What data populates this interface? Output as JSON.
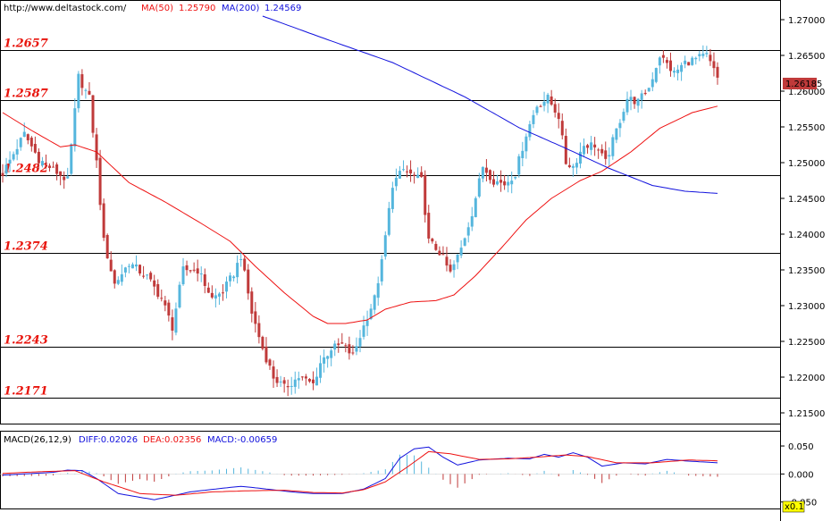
{
  "header": {
    "url": "http://www.deltastock.com/",
    "ma50_label": "MA(50)",
    "ma50_value": "1.25790",
    "ma200_label": "MA(200)",
    "ma200_value": "1.24569"
  },
  "macd_header": {
    "label": "MACD(26,12,9)",
    "diff": "DIFF:0.02026",
    "dea": "DEA:0.02356",
    "macd": "MACD:-0.00659"
  },
  "current_price_tag": "1.26185",
  "scale_tag": "x0.1",
  "colors": {
    "ma50": "#ee1111",
    "ma200": "#1111dd",
    "bull_candle": "#55b6dd",
    "bear_candle": "#c03a3a",
    "level_text": "#e8140c",
    "hist_pos": "#55b6dd",
    "hist_neg": "#c03a3a",
    "diff_line": "#1111dd",
    "dea_line": "#ee1111"
  },
  "chart_data": [
    {
      "type": "candlestick",
      "ylim": [
        1.2135,
        1.2725
      ],
      "yticks": [
        "1.27000",
        "1.26500",
        "1.26000",
        "1.25500",
        "1.25000",
        "1.24500",
        "1.24000",
        "1.23500",
        "1.23000",
        "1.22500",
        "1.22000",
        "1.21500"
      ],
      "levels": [
        {
          "label": "1.2657",
          "value": 1.2657
        },
        {
          "label": "1.2587",
          "value": 1.2587
        },
        {
          "label": "1.2482",
          "value": 1.2482
        },
        {
          "label": "1.2374",
          "value": 1.2374
        },
        {
          "label": "1.2243",
          "value": 1.2243
        },
        {
          "label": "1.2171",
          "value": 1.2171
        }
      ],
      "anchors": [
        [
          0,
          1.2485
        ],
        [
          6,
          1.254
        ],
        [
          10,
          1.2505
        ],
        [
          14,
          1.249
        ],
        [
          18,
          1.2475
        ],
        [
          21,
          1.262
        ],
        [
          24,
          1.259
        ],
        [
          26,
          1.25
        ],
        [
          28,
          1.239
        ],
        [
          31,
          1.233
        ],
        [
          35,
          1.236
        ],
        [
          40,
          1.234
        ],
        [
          44,
          1.231
        ],
        [
          47,
          1.227
        ],
        [
          50,
          1.235
        ],
        [
          54,
          1.235
        ],
        [
          58,
          1.231
        ],
        [
          61,
          1.232
        ],
        [
          64,
          1.2345
        ],
        [
          66,
          1.237
        ],
        [
          69,
          1.229
        ],
        [
          72,
          1.224
        ],
        [
          75,
          1.22
        ],
        [
          78,
          1.2185
        ],
        [
          82,
          1.22
        ],
        [
          86,
          1.219
        ],
        [
          88,
          1.222
        ],
        [
          91,
          1.224
        ],
        [
          94,
          1.2245
        ],
        [
          97,
          1.223
        ],
        [
          101,
          1.2285
        ],
        [
          103,
          1.231
        ],
        [
          105,
          1.236
        ],
        [
          108,
          1.247
        ],
        [
          111,
          1.249
        ],
        [
          114,
          1.248
        ],
        [
          116,
          1.2475
        ],
        [
          118,
          1.239
        ],
        [
          121,
          1.2375
        ],
        [
          124,
          1.2345
        ],
        [
          127,
          1.238
        ],
        [
          130,
          1.243
        ],
        [
          133,
          1.2495
        ],
        [
          136,
          1.2475
        ],
        [
          139,
          1.247
        ],
        [
          142,
          1.2485
        ],
        [
          145,
          1.254
        ],
        [
          148,
          1.258
        ],
        [
          151,
          1.259
        ],
        [
          154,
          1.2565
        ],
        [
          156,
          1.25
        ],
        [
          158,
          1.2495
        ],
        [
          161,
          1.2525
        ],
        [
          164,
          1.2525
        ],
        [
          167,
          1.25
        ],
        [
          170,
          1.2545
        ],
        [
          173,
          1.259
        ],
        [
          176,
          1.2585
        ],
        [
          179,
          1.2605
        ],
        [
          182,
          1.265
        ],
        [
          186,
          1.2625
        ],
        [
          189,
          1.264
        ],
        [
          192,
          1.2645
        ],
        [
          195,
          1.265
        ],
        [
          198,
          1.2618
        ]
      ],
      "ma50": [
        [
          0,
          1.257
        ],
        [
          8,
          1.2545
        ],
        [
          16,
          1.2522
        ],
        [
          20,
          1.2525
        ],
        [
          26,
          1.2515
        ],
        [
          35,
          1.2472
        ],
        [
          45,
          1.2445
        ],
        [
          55,
          1.2415
        ],
        [
          63,
          1.239
        ],
        [
          70,
          1.2355
        ],
        [
          78,
          1.2318
        ],
        [
          86,
          1.2285
        ],
        [
          90,
          1.2275
        ],
        [
          95,
          1.2275
        ],
        [
          101,
          1.228
        ],
        [
          106,
          1.2295
        ],
        [
          113,
          1.2305
        ],
        [
          120,
          1.2307
        ],
        [
          125,
          1.2315
        ],
        [
          131,
          1.2342
        ],
        [
          138,
          1.238
        ],
        [
          145,
          1.242
        ],
        [
          152,
          1.245
        ],
        [
          160,
          1.2475
        ],
        [
          166,
          1.2488
        ],
        [
          174,
          1.2515
        ],
        [
          182,
          1.2548
        ],
        [
          191,
          1.257
        ],
        [
          198,
          1.2579
        ]
      ],
      "ma200": [
        [
          72,
          1.2705
        ],
        [
          90,
          1.2672
        ],
        [
          108,
          1.264
        ],
        [
          128,
          1.2592
        ],
        [
          143,
          1.2549
        ],
        [
          156,
          1.252
        ],
        [
          168,
          1.2492
        ],
        [
          180,
          1.2468
        ],
        [
          189,
          1.246
        ],
        [
          198,
          1.2457
        ]
      ]
    },
    {
      "type": "macd",
      "ylim": [
        -0.06,
        0.074
      ],
      "yticks": [
        "0.050",
        "0.000",
        "-0.050"
      ],
      "diff": [
        [
          0,
          -0.002
        ],
        [
          14,
          0.003
        ],
        [
          18,
          0.007
        ],
        [
          22,
          0.006
        ],
        [
          26,
          -0.008
        ],
        [
          32,
          -0.035
        ],
        [
          42,
          -0.046
        ],
        [
          52,
          -0.032
        ],
        [
          60,
          -0.026
        ],
        [
          66,
          -0.022
        ],
        [
          72,
          -0.026
        ],
        [
          80,
          -0.032
        ],
        [
          86,
          -0.035
        ],
        [
          94,
          -0.035
        ],
        [
          100,
          -0.027
        ],
        [
          106,
          -0.008
        ],
        [
          110,
          0.028
        ],
        [
          114,
          0.045
        ],
        [
          118,
          0.048
        ],
        [
          122,
          0.03
        ],
        [
          126,
          0.016
        ],
        [
          132,
          0.025
        ],
        [
          140,
          0.028
        ],
        [
          146,
          0.027
        ],
        [
          150,
          0.035
        ],
        [
          154,
          0.03
        ],
        [
          158,
          0.038
        ],
        [
          162,
          0.03
        ],
        [
          166,
          0.014
        ],
        [
          172,
          0.02
        ],
        [
          178,
          0.018
        ],
        [
          184,
          0.026
        ],
        [
          190,
          0.023
        ],
        [
          198,
          0.02
        ]
      ],
      "dea": [
        [
          0,
          0.001
        ],
        [
          10,
          0.004
        ],
        [
          20,
          0.006
        ],
        [
          28,
          -0.014
        ],
        [
          38,
          -0.035
        ],
        [
          48,
          -0.038
        ],
        [
          58,
          -0.032
        ],
        [
          68,
          -0.03
        ],
        [
          78,
          -0.029
        ],
        [
          86,
          -0.033
        ],
        [
          94,
          -0.034
        ],
        [
          100,
          -0.028
        ],
        [
          106,
          -0.014
        ],
        [
          112,
          0.012
        ],
        [
          118,
          0.04
        ],
        [
          124,
          0.036
        ],
        [
          132,
          0.026
        ],
        [
          140,
          0.027
        ],
        [
          150,
          0.031
        ],
        [
          156,
          0.034
        ],
        [
          162,
          0.031
        ],
        [
          170,
          0.02
        ],
        [
          180,
          0.02
        ],
        [
          190,
          0.025
        ],
        [
          198,
          0.0235
        ]
      ]
    }
  ]
}
